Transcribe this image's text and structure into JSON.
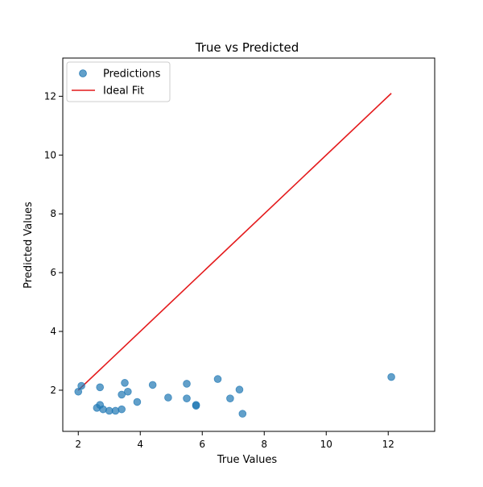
{
  "chart_data": {
    "type": "scatter",
    "title": "True vs Predicted",
    "xlabel": "True Values",
    "ylabel": "Predicted Values",
    "xlim": [
      1.5,
      13.5
    ],
    "ylim": [
      0.6,
      13.3
    ],
    "xticks": [
      2,
      4,
      6,
      8,
      10,
      12
    ],
    "yticks": [
      2,
      4,
      6,
      8,
      10,
      12
    ],
    "grid": false,
    "legend_position": "top-left",
    "series": [
      {
        "name": "Predictions",
        "kind": "scatter",
        "color": "#1f77b4",
        "points": [
          {
            "x": 2.0,
            "y": 1.95
          },
          {
            "x": 2.1,
            "y": 2.15
          },
          {
            "x": 2.6,
            "y": 1.4
          },
          {
            "x": 2.7,
            "y": 2.1
          },
          {
            "x": 2.7,
            "y": 1.5
          },
          {
            "x": 2.8,
            "y": 1.35
          },
          {
            "x": 3.0,
            "y": 1.3
          },
          {
            "x": 3.2,
            "y": 1.3
          },
          {
            "x": 3.4,
            "y": 1.35
          },
          {
            "x": 3.4,
            "y": 1.85
          },
          {
            "x": 3.5,
            "y": 2.25
          },
          {
            "x": 3.6,
            "y": 1.95
          },
          {
            "x": 3.9,
            "y": 1.6
          },
          {
            "x": 4.4,
            "y": 2.18
          },
          {
            "x": 4.9,
            "y": 1.75
          },
          {
            "x": 5.5,
            "y": 2.22
          },
          {
            "x": 5.5,
            "y": 1.72
          },
          {
            "x": 5.8,
            "y": 1.5
          },
          {
            "x": 5.8,
            "y": 1.47
          },
          {
            "x": 6.5,
            "y": 2.38
          },
          {
            "x": 6.9,
            "y": 1.72
          },
          {
            "x": 7.2,
            "y": 2.02
          },
          {
            "x": 7.3,
            "y": 1.2
          },
          {
            "x": 12.1,
            "y": 2.45
          }
        ]
      },
      {
        "name": "Ideal Fit",
        "kind": "line",
        "color": "#e41a1c",
        "points": [
          {
            "x": 2.0,
            "y": 2.0
          },
          {
            "x": 12.1,
            "y": 12.1
          }
        ]
      }
    ]
  }
}
